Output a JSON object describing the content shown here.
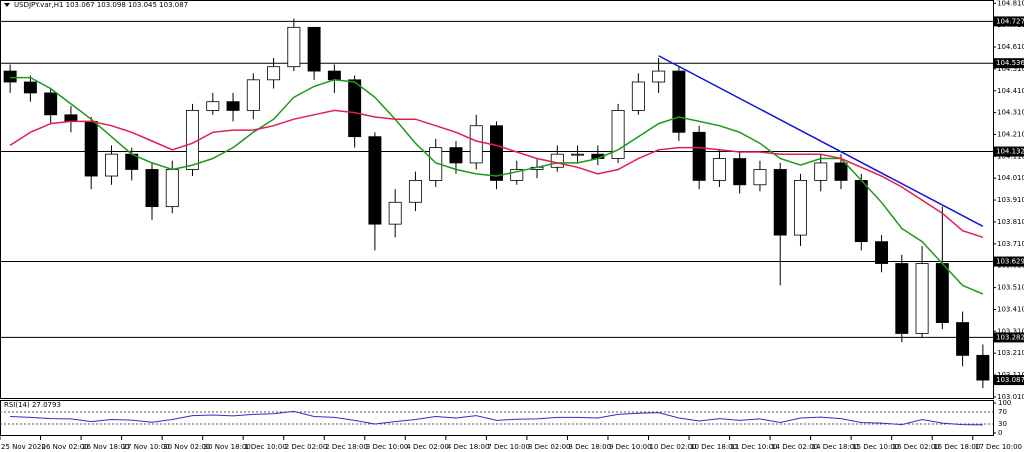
{
  "chart_data": {
    "type": "candlestick",
    "title": "USDJPY.var,H1  103.067 103.098 103.045 103.087",
    "categories": [
      "25 Nov 2020",
      null,
      "26 Nov 02:00",
      null,
      "26 Nov 18:00",
      null,
      "27 Nov 10:00",
      null,
      "30 Nov 02:00",
      null,
      "30 Nov 18:00",
      null,
      "1 Dec 10:00",
      null,
      "2 Dec 02:00",
      null,
      "2 Dec 18:00",
      null,
      "3 Dec 10:00",
      null,
      "4 Dec 02:00",
      null,
      "4 Dec 18:00",
      null,
      "7 Dec 10:00",
      null,
      "8 Dec 02:00",
      null,
      "8 Dec 18:00",
      null,
      "9 Dec 10:00",
      null,
      "10 Dec 02:00",
      null,
      "10 Dec 18:00",
      null,
      "11 Dec 10:00",
      null,
      "14 Dec 02:00",
      null,
      "14 Dec 18:00",
      null,
      "15 Dec 10:00",
      null,
      "16 Dec 02:00",
      null,
      "16 Dec 18:00",
      null,
      "17 Dec 10:00"
    ],
    "open": [
      104.5,
      104.45,
      104.4,
      104.3,
      104.27,
      104.02,
      104.12,
      104.05,
      103.88,
      104.05,
      104.32,
      104.36,
      104.32,
      104.46,
      104.52,
      104.7,
      104.5,
      104.46,
      104.2,
      103.8,
      103.9,
      104.0,
      104.15,
      104.08,
      104.25,
      104.0,
      104.05,
      104.06,
      104.12,
      104.12,
      104.1,
      104.32,
      104.45,
      104.5,
      104.22,
      104.0,
      104.1,
      103.98,
      104.05,
      103.75,
      104.0,
      104.08,
      104.0,
      103.72,
      103.62,
      103.3,
      103.62,
      103.35,
      103.2
    ],
    "high": [
      104.53,
      104.48,
      104.42,
      104.34,
      104.29,
      104.16,
      104.15,
      104.08,
      104.09,
      104.35,
      104.4,
      104.4,
      104.49,
      104.56,
      104.74,
      104.7,
      104.53,
      104.48,
      104.22,
      103.96,
      104.04,
      104.19,
      104.18,
      104.3,
      104.27,
      104.09,
      104.1,
      104.16,
      104.16,
      104.16,
      104.35,
      104.49,
      104.56,
      104.52,
      104.25,
      104.14,
      104.13,
      104.09,
      104.08,
      104.03,
      104.12,
      104.12,
      104.03,
      103.75,
      103.66,
      103.7,
      103.88,
      103.4,
      103.25
    ],
    "low": [
      104.4,
      104.36,
      104.26,
      104.22,
      103.96,
      103.98,
      104.0,
      103.82,
      103.85,
      104.02,
      104.3,
      104.27,
      104.28,
      104.42,
      104.5,
      104.46,
      104.4,
      104.15,
      103.68,
      103.74,
      103.86,
      103.97,
      104.03,
      104.05,
      103.96,
      103.98,
      104.01,
      104.04,
      104.08,
      104.07,
      104.08,
      104.3,
      104.4,
      104.18,
      103.96,
      103.97,
      103.94,
      103.95,
      103.52,
      103.7,
      103.95,
      103.96,
      103.68,
      103.58,
      103.26,
      103.28,
      103.32,
      103.15,
      103.05
    ],
    "close": [
      104.45,
      104.4,
      104.3,
      104.27,
      104.02,
      104.12,
      104.05,
      103.88,
      104.05,
      104.32,
      104.36,
      104.32,
      104.46,
      104.52,
      104.7,
      104.5,
      104.46,
      104.2,
      103.8,
      103.9,
      104.0,
      104.15,
      104.08,
      104.25,
      104.0,
      104.05,
      104.06,
      104.12,
      104.12,
      104.1,
      104.32,
      104.45,
      104.5,
      104.22,
      104.0,
      104.1,
      103.98,
      104.05,
      103.75,
      104.0,
      104.08,
      104.0,
      103.72,
      103.62,
      103.3,
      103.62,
      103.35,
      103.2,
      103.087
    ],
    "series": [
      {
        "color": "#1a9a1a",
        "values": [
          104.47,
          104.47,
          104.42,
          104.35,
          104.28,
          104.2,
          104.12,
          104.08,
          104.05,
          104.07,
          104.1,
          104.15,
          104.22,
          104.28,
          104.38,
          104.43,
          104.46,
          104.45,
          104.38,
          104.28,
          104.17,
          104.08,
          104.05,
          104.03,
          104.02,
          104.04,
          104.06,
          104.08,
          104.08,
          104.1,
          104.14,
          104.2,
          104.26,
          104.29,
          104.27,
          104.25,
          104.22,
          104.17,
          104.1,
          104.07,
          104.1,
          104.1,
          104.0,
          103.9,
          103.78,
          103.72,
          103.62,
          103.52,
          103.48
        ]
      },
      {
        "color": "#e0204a",
        "values": [
          104.16,
          104.22,
          104.26,
          104.27,
          104.27,
          104.25,
          104.22,
          104.18,
          104.14,
          104.17,
          104.22,
          104.23,
          104.23,
          104.25,
          104.28,
          104.3,
          104.32,
          104.31,
          104.29,
          104.28,
          104.28,
          104.25,
          104.22,
          104.18,
          104.16,
          104.13,
          104.1,
          104.08,
          104.06,
          104.03,
          104.05,
          104.1,
          104.14,
          104.15,
          104.15,
          104.14,
          104.13,
          104.13,
          104.12,
          104.12,
          104.12,
          104.1,
          104.06,
          104.02,
          103.97,
          103.91,
          103.85,
          103.77,
          103.74
        ]
      }
    ],
    "levels": [
      104.727,
      104.536,
      104.132,
      103.629,
      103.282
    ],
    "last_price": 103.087,
    "trendline": {
      "color": "#1010e0",
      "points": [
        {
          "index": 32,
          "value": 104.57
        },
        {
          "index": 48,
          "value": 103.79
        }
      ]
    },
    "ylim": [
      103.005,
      104.825
    ],
    "yticks": [
      {
        "value": 104.81,
        "label": "104.810"
      },
      {
        "value": 104.71,
        "label": "104.710"
      },
      {
        "value": 104.61,
        "label": "104.610"
      },
      {
        "value": 104.51,
        "label": "104.510"
      },
      {
        "value": 104.41,
        "label": "104.410"
      },
      {
        "value": 104.31,
        "label": "104.310"
      },
      {
        "value": 104.21,
        "label": "104.210"
      },
      {
        "value": 104.11,
        "label": "104.110"
      },
      {
        "value": 104.01,
        "label": "104.010"
      },
      {
        "value": 103.91,
        "label": "103.910"
      },
      {
        "value": 103.81,
        "label": "103.810"
      },
      {
        "value": 103.71,
        "label": "103.710"
      },
      {
        "value": 103.61,
        "label": "103.610"
      },
      {
        "value": 103.51,
        "label": "103.510"
      },
      {
        "value": 103.41,
        "label": "103.410"
      },
      {
        "value": 103.31,
        "label": "103.310"
      },
      {
        "value": 103.21,
        "label": "103.210"
      },
      {
        "value": 103.11,
        "label": "103.110"
      },
      {
        "value": 103.01,
        "label": "103.010"
      }
    ],
    "rsi": {
      "label": "RSI(14) 27.0793",
      "color": "#3030c0",
      "values": [
        55,
        52,
        48,
        47,
        38,
        45,
        43,
        36,
        45,
        58,
        60,
        57,
        62,
        64,
        72,
        55,
        52,
        42,
        30,
        38,
        45,
        55,
        50,
        58,
        42,
        46,
        47,
        52,
        52,
        50,
        62,
        66,
        68,
        50,
        40,
        48,
        42,
        47,
        35,
        50,
        53,
        48,
        35,
        33,
        28,
        45,
        33,
        28,
        27.0793
      ],
      "ylim": [
        0,
        100
      ],
      "yticks": [
        100,
        70,
        30,
        0
      ]
    }
  }
}
